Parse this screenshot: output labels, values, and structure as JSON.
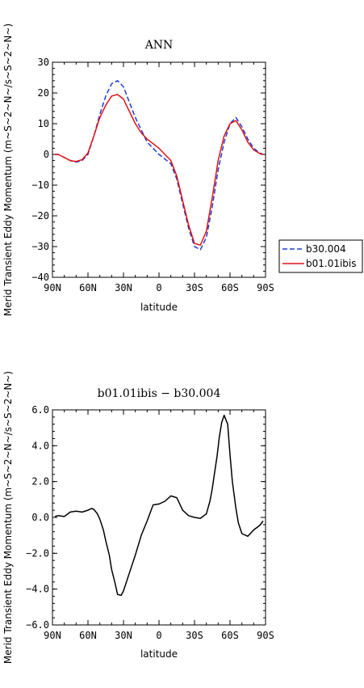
{
  "chart_data": [
    {
      "type": "line",
      "title": "ANN",
      "xlabel": "latitude",
      "ylabel": "Merid Transient Eddy Momentum (m~S~2~N~/s~S~2~N~)",
      "x_tick_labels": [
        "90N",
        "60N",
        "30N",
        "0",
        "30S",
        "60S",
        "90S"
      ],
      "x_tick_values": [
        90,
        60,
        30,
        0,
        -30,
        -60,
        -90
      ],
      "xlim": [
        90,
        -90
      ],
      "y_ticks": [
        30,
        20,
        10,
        0,
        -10,
        -20,
        -30,
        -40
      ],
      "y_tick_labels": [
        "30",
        "20",
        "10",
        "0",
        "−10",
        "−20",
        "−30",
        "−40"
      ],
      "ylim": [
        -40,
        30
      ],
      "legend_position": "right-outside",
      "series": [
        {
          "name": "b30.004",
          "color": "#1f3bd6",
          "dash": "dashed",
          "x": [
            88,
            85,
            80,
            75,
            70,
            65,
            60,
            55,
            50,
            45,
            40,
            35,
            30,
            25,
            20,
            15,
            10,
            5,
            0,
            -5,
            -10,
            -15,
            -20,
            -25,
            -30,
            -35,
            -40,
            -45,
            -50,
            -55,
            -60,
            -65,
            -70,
            -75,
            -80,
            -85,
            -88
          ],
          "y": [
            0,
            0,
            -1,
            -2,
            -2.5,
            -2,
            0,
            6,
            13,
            19,
            23,
            24,
            22,
            17,
            12,
            8,
            4,
            2,
            0,
            -1.5,
            -3,
            -8,
            -16,
            -24,
            -30,
            -31,
            -27,
            -17,
            -5,
            4,
            10,
            12,
            9,
            5,
            2,
            0.5,
            0
          ]
        },
        {
          "name": "b01.01ibis",
          "color": "#e31212",
          "dash": "solid",
          "x": [
            88,
            85,
            80,
            75,
            70,
            65,
            60,
            55,
            50,
            45,
            40,
            35,
            30,
            25,
            20,
            15,
            10,
            5,
            0,
            -5,
            -10,
            -15,
            -20,
            -25,
            -30,
            -35,
            -40,
            -45,
            -50,
            -55,
            -60,
            -65,
            -70,
            -75,
            -80,
            -85,
            -88
          ],
          "y": [
            0,
            0,
            -1,
            -2,
            -2.3,
            -1.7,
            0.5,
            6,
            12,
            16,
            19,
            19.5,
            18,
            14,
            10,
            7,
            5,
            3.5,
            2,
            0,
            -2,
            -7,
            -15,
            -23,
            -29,
            -29.5,
            -25,
            -14,
            -2,
            6,
            10,
            11,
            8,
            4,
            1.5,
            0.3,
            0
          ]
        }
      ]
    },
    {
      "type": "line",
      "title": "b01.01ibis − b30.004",
      "xlabel": "latitude",
      "ylabel": "Merid Transient Eddy Momentum (m~S~2~N~/s~S~2~N~)",
      "x_tick_labels": [
        "90N",
        "60N",
        "30N",
        "0",
        "30S",
        "60S",
        "90S"
      ],
      "x_tick_values": [
        90,
        60,
        30,
        0,
        -30,
        -60,
        -90
      ],
      "xlim": [
        90,
        -90
      ],
      "y_ticks": [
        6,
        4,
        2,
        0,
        -2,
        -4,
        -6
      ],
      "y_tick_labels": [
        "6.0",
        "4.0",
        "2.0",
        "0.0",
        "−2.0",
        "−4.0",
        "−6.0"
      ],
      "ylim": [
        -6,
        6
      ],
      "series": [
        {
          "color": "#000000",
          "dash": "solid",
          "x": [
            88,
            85,
            80,
            75,
            70,
            65,
            60,
            57,
            55,
            52,
            50,
            47,
            45,
            42,
            40,
            37,
            35,
            32,
            30,
            25,
            20,
            15,
            10,
            5,
            0,
            -5,
            -10,
            -15,
            -20,
            -25,
            -30,
            -35,
            -40,
            -43,
            -45,
            -47,
            -49,
            -51,
            -53,
            -55,
            -58,
            -60,
            -62,
            -65,
            -67,
            -70,
            -75,
            -80,
            -85,
            -88
          ],
          "y": [
            0.05,
            0.1,
            0.05,
            0.3,
            0.35,
            0.3,
            0.4,
            0.5,
            0.45,
            0.2,
            -0.1,
            -0.7,
            -1.3,
            -2.1,
            -2.9,
            -3.7,
            -4.3,
            -4.35,
            -4.1,
            -3.1,
            -2.1,
            -1.0,
            -0.2,
            0.7,
            0.75,
            0.9,
            1.2,
            1.1,
            0.4,
            0.1,
            0.0,
            -0.05,
            0.2,
            0.9,
            1.6,
            2.5,
            3.4,
            4.5,
            5.3,
            5.7,
            5.2,
            3.5,
            2.0,
            0.5,
            -0.3,
            -0.9,
            -1.05,
            -0.7,
            -0.45,
            -0.2
          ]
        }
      ]
    }
  ]
}
